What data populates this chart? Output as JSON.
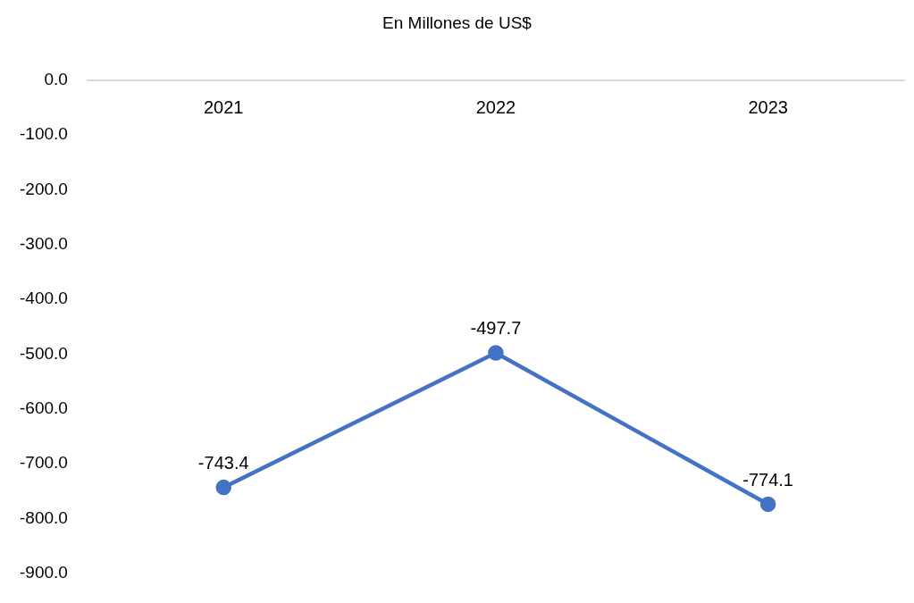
{
  "chart_data": {
    "type": "line",
    "title": "En Millones de US$",
    "categories": [
      "2021",
      "2022",
      "2023"
    ],
    "series": [
      {
        "color": "#4472c4",
        "values": [
          -743.4,
          -497.7,
          -774.1
        ]
      }
    ],
    "ylim": [
      -900,
      0
    ],
    "yticks": [
      {
        "value": 0,
        "label": "0.0"
      },
      {
        "value": -100,
        "label": "-100.0"
      },
      {
        "value": -200,
        "label": "-200.0"
      },
      {
        "value": -300,
        "label": "-300.0"
      },
      {
        "value": -400,
        "label": "-400.0"
      },
      {
        "value": -500,
        "label": "-500.0"
      },
      {
        "value": -600,
        "label": "-600.0"
      },
      {
        "value": -700,
        "label": "-700.0"
      },
      {
        "value": -800,
        "label": "-800.0"
      },
      {
        "value": -900,
        "label": "-900.0"
      }
    ],
    "grid": false,
    "legend": false,
    "marker": "circle",
    "line_style": "solid",
    "data_labels": true
  }
}
